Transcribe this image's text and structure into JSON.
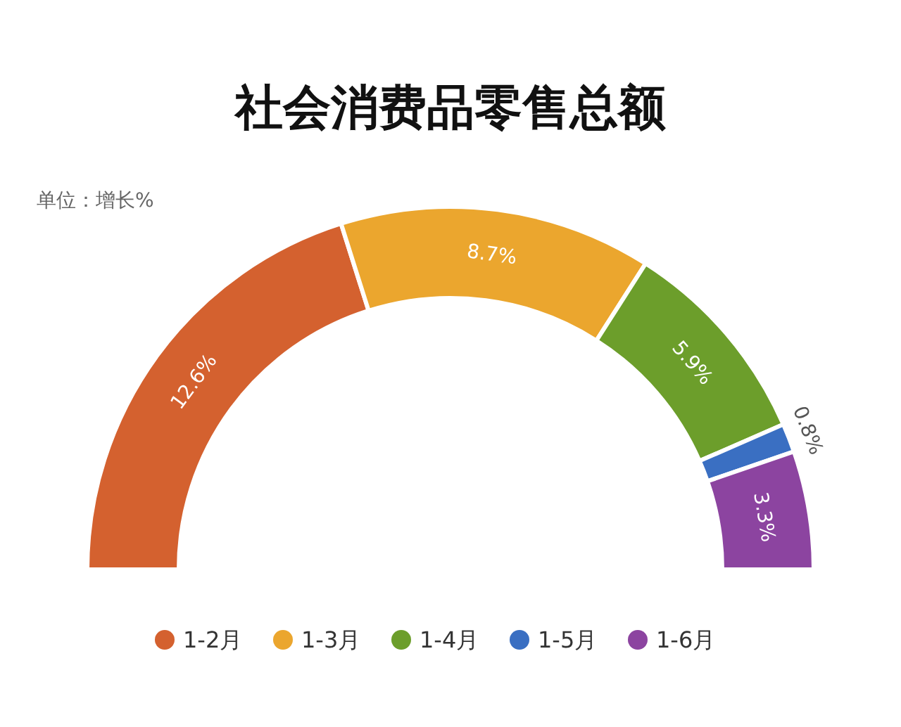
{
  "chart_data": {
    "type": "donut",
    "title": "社会消费品零售总额",
    "annotations": [
      "单位：增长%"
    ],
    "categories": [
      "1-2月",
      "1-3月",
      "1-4月",
      "1-5月",
      "1-6月"
    ],
    "values": [
      12.6,
      8.7,
      5.9,
      0.8,
      3.3
    ],
    "value_labels": [
      "12.6%",
      "8.7%",
      "5.9%",
      "0.8%",
      "3.3%"
    ],
    "colors": [
      "#d4612f",
      "#eba62e",
      "#6c9e2b",
      "#3a6fc2",
      "#8c44a0"
    ],
    "legend": "bottom"
  }
}
